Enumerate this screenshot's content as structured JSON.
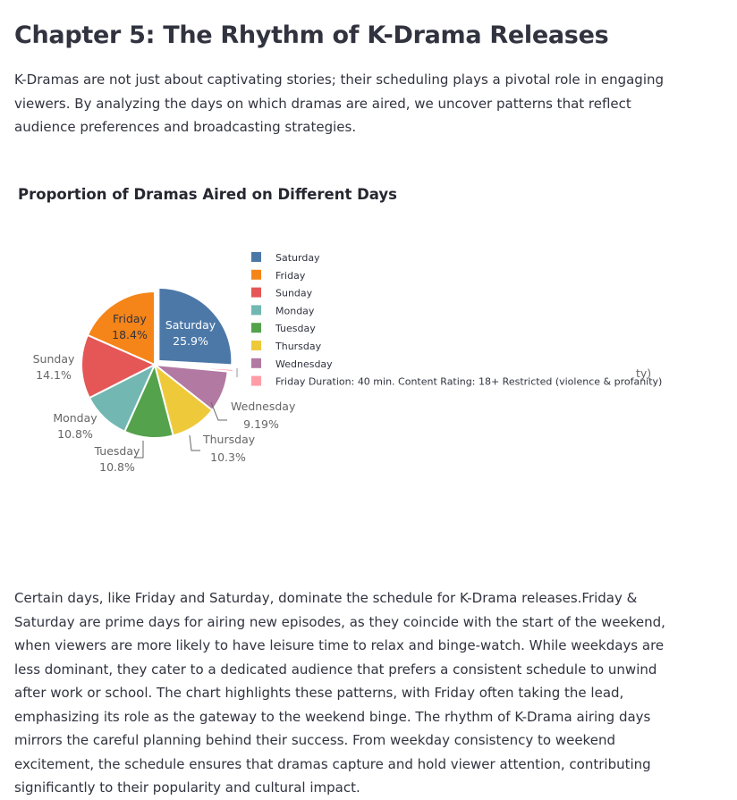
{
  "page": {
    "heading": "Chapter 5: The Rhythm of K-Drama Releases",
    "intro": "K-Dramas are not just about captivating stories; their scheduling plays a pivotal role in engaging viewers. By analyzing the days on which dramas are aired, we uncover patterns that reflect audience preferences and broadcasting strategies.",
    "outro": "Certain days, like Friday and Saturday, dominate the schedule for K-Drama releases.Friday & Saturday are prime days for airing new episodes, as they coincide with the start of the weekend, when viewers are more likely to have leisure time to relax and binge-watch. While weekdays are less dominant, they cater to a dedicated audience that prefers a consistent schedule to unwind after work or school. The chart highlights these patterns, with Friday often taking the lead, emphasizing its role as the gateway to the weekend binge. The rhythm of K-Drama airing days mirrors the careful planning behind their success. From weekday consistency to weekend excitement, the schedule ensures that dramas capture and hold viewer attention, contributing significantly to their popularity and cultural impact."
  },
  "chart_data": {
    "type": "pie",
    "title": "Proportion of Dramas Aired on Different Days",
    "slices": [
      {
        "label": "Saturday",
        "value": 25.9,
        "pct_label": "25.9%",
        "color": "#4c78a8",
        "pulled": true
      },
      {
        "label": "Friday Duration: 40 min. Content Rating: 18+ Restricted (violence & profanity)",
        "value": 0.6,
        "pct_label": "",
        "color": "#ff9da6",
        "pulled": true
      },
      {
        "label": "Wednesday",
        "value": 9.19,
        "pct_label": "9.19%",
        "color": "#b279a2",
        "pulled": false
      },
      {
        "label": "Thursday",
        "value": 10.3,
        "pct_label": "10.3%",
        "color": "#eeca3b",
        "pulled": false
      },
      {
        "label": "Tuesday",
        "value": 10.8,
        "pct_label": "10.8%",
        "color": "#54a24b",
        "pulled": false
      },
      {
        "label": "Monday",
        "value": 10.8,
        "pct_label": "10.8%",
        "color": "#72b7b2",
        "pulled": false
      },
      {
        "label": "Sunday",
        "value": 14.1,
        "pct_label": "14.1%",
        "color": "#e45756",
        "pulled": false
      },
      {
        "label": "Friday",
        "value": 18.4,
        "pct_label": "18.4%",
        "color": "#f58518",
        "pulled": false
      }
    ],
    "legend": [
      {
        "label": "Saturday",
        "color": "#4c78a8"
      },
      {
        "label": "Friday",
        "color": "#f58518"
      },
      {
        "label": "Sunday",
        "color": "#e45756"
      },
      {
        "label": "Monday",
        "color": "#72b7b2"
      },
      {
        "label": "Tuesday",
        "color": "#54a24b"
      },
      {
        "label": "Thursday",
        "color": "#eeca3b"
      },
      {
        "label": "Wednesday",
        "color": "#b279a2"
      },
      {
        "label": "Friday Duration: 40 min. Content Rating: 18+ Restricted (violence & profanity)",
        "color": "#ff9da6"
      }
    ],
    "stray_label": "ty)",
    "legend_placement": "right"
  }
}
